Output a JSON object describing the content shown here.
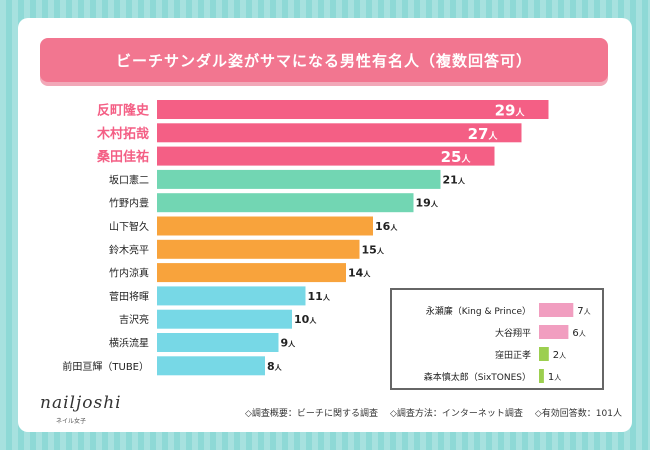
{
  "title": "ビーチサンダル姿がサマになる男性有名人（複数回答可）",
  "chart_data": {
    "type": "bar",
    "orientation": "horizontal",
    "categories": [
      "反町隆史",
      "木村拓哉",
      "桑田佳祐",
      "坂口憲二",
      "竹野内豊",
      "山下智久",
      "鈴木亮平",
      "竹内涼真",
      "菅田将暉",
      "吉沢亮",
      "横浜流星",
      "前田亘輝（TUBE）"
    ],
    "values": [
      29,
      27,
      25,
      21,
      19,
      16,
      15,
      14,
      11,
      10,
      9,
      8
    ],
    "unit": "人",
    "xlim": [
      0,
      30
    ],
    "grid": false,
    "colors": [
      "#f45f85",
      "#f45f85",
      "#f45f85",
      "#72d6b3",
      "#72d6b3",
      "#f8a33c",
      "#f8a33c",
      "#f8a33c",
      "#77d8e6",
      "#77d8e6",
      "#77d8e6",
      "#77d8e6"
    ],
    "label_colors": [
      "#f45f85",
      "#f45f85",
      "#f45f85",
      "#222222",
      "#222222",
      "#222222",
      "#222222",
      "#222222",
      "#222222",
      "#222222",
      "#222222",
      "#222222"
    ],
    "inset": {
      "categories": [
        "永瀬廉（King & Prince）",
        "大谷翔平",
        "窪田正孝",
        "森本慎太郎（SixTONES）"
      ],
      "values": [
        7,
        6,
        2,
        1
      ],
      "colors": [
        "#f19ec0",
        "#f19ec0",
        "#9ccf4f",
        "#9ccf4f"
      ]
    }
  },
  "logo": {
    "text": "nailjoshi",
    "sub": "ネイル女子"
  },
  "footer": {
    "overview": "◇調査概要：ビーチに関する調査",
    "method": "◇調査方法：インターネット調査",
    "responses": "◇有効回答数：101人"
  }
}
